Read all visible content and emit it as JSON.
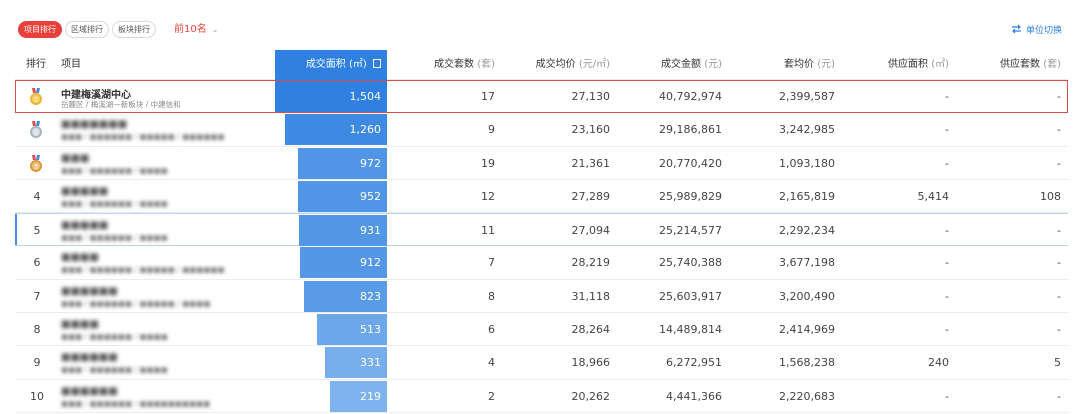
{
  "toolbar": {
    "tabs": [
      "项目排行",
      "区域排行",
      "板块排行"
    ],
    "active_tab_index": 0,
    "topn_label": "前10名",
    "unit_switch_label": "单位切换",
    "accent_color": "#e8413b",
    "link_color": "#2f7de1"
  },
  "table": {
    "headers": {
      "rank": "排行",
      "project": "项目",
      "area": "成交面积",
      "area_unit": "(㎡)",
      "sets": "成交套数",
      "sets_unit": "(套)",
      "avg_price": "成交均价",
      "avg_price_unit": "(元/㎡)",
      "amount": "成交金额",
      "amount_unit": "(元)",
      "set_avg": "套均价",
      "set_avg_unit": "(元)",
      "supply_area": "供应面积",
      "supply_area_unit": "(㎡)",
      "supply_sets": "供应套数",
      "supply_sets_unit": "(套)"
    },
    "bar_color": "#2f80e0",
    "bar_max_value": 1504,
    "rows": [
      {
        "rank": "1",
        "medal": "gold",
        "name": "中建梅溪湖中心",
        "sub": "岳麓区 / 梅溪湖—新板块 / 中建信和",
        "area": 1504,
        "area_text": "1,504",
        "sets": "17",
        "avg_price": "27,130",
        "amount": "40,792,974",
        "set_avg": "2,399,587",
        "supply_area": "-",
        "supply_sets": "-",
        "highlight": true,
        "blur": false
      },
      {
        "rank": "2",
        "medal": "silver",
        "name": "■■■■■■■",
        "sub": "■■■ / ■■■■■■ / ■■■■■ / ■■■■■■",
        "area": 1260,
        "area_text": "1,260",
        "sets": "9",
        "avg_price": "23,160",
        "amount": "29,186,861",
        "set_avg": "3,242,985",
        "supply_area": "-",
        "supply_sets": "-",
        "blur": true
      },
      {
        "rank": "3",
        "medal": "bronze",
        "name": "■■■",
        "sub": "■■■ / ■■■■■■ / ■■■■",
        "area": 972,
        "area_text": "972",
        "sets": "19",
        "avg_price": "21,361",
        "amount": "20,770,420",
        "set_avg": "1,093,180",
        "supply_area": "-",
        "supply_sets": "-",
        "blur": true
      },
      {
        "rank": "4",
        "medal": "",
        "name": "■■■■■",
        "sub": "■■■ / ■■■■■■ / ■■■■",
        "area": 952,
        "area_text": "952",
        "sets": "12",
        "avg_price": "27,289",
        "amount": "25,989,829",
        "set_avg": "2,165,819",
        "supply_area": "5,414",
        "supply_sets": "108",
        "blur": true
      },
      {
        "rank": "5",
        "medal": "",
        "name": "■■■■■",
        "sub": "■■■ / ■■■■■■ / ■■■■",
        "area": 931,
        "area_text": "931",
        "sets": "11",
        "avg_price": "27,094",
        "amount": "25,214,577",
        "set_avg": "2,292,234",
        "supply_area": "-",
        "supply_sets": "-",
        "hover": true,
        "blur": true
      },
      {
        "rank": "6",
        "medal": "",
        "name": "■■■■",
        "sub": "■■■ / ■■■■■■ / ■■■■■ / ■■■■■■",
        "area": 912,
        "area_text": "912",
        "sets": "7",
        "avg_price": "28,219",
        "amount": "25,740,388",
        "set_avg": "3,677,198",
        "supply_area": "-",
        "supply_sets": "-",
        "blur": true
      },
      {
        "rank": "7",
        "medal": "",
        "name": "■■■■■■",
        "sub": "■■■ / ■■■■■■ / ■■■■■ / ■■■■",
        "area": 823,
        "area_text": "823",
        "sets": "8",
        "avg_price": "31,118",
        "amount": "25,603,917",
        "set_avg": "3,200,490",
        "supply_area": "-",
        "supply_sets": "-",
        "blur": true
      },
      {
        "rank": "8",
        "medal": "",
        "name": "■■■■",
        "sub": "■■■ / ■■■■■■ / ■■■■",
        "area": 513,
        "area_text": "513",
        "sets": "6",
        "avg_price": "28,264",
        "amount": "14,489,814",
        "set_avg": "2,414,969",
        "supply_area": "-",
        "supply_sets": "-",
        "blur": true
      },
      {
        "rank": "9",
        "medal": "",
        "name": "■■■■■■",
        "sub": "■■■ / ■■■■■■ / ■■■■",
        "area": 331,
        "area_text": "331",
        "sets": "4",
        "avg_price": "18,966",
        "amount": "6,272,951",
        "set_avg": "1,568,238",
        "supply_area": "240",
        "supply_sets": "5",
        "blur": true
      },
      {
        "rank": "10",
        "medal": "",
        "name": "■■■■■■",
        "sub": "■■■ / ■■■■■■ / ■■■■■■■■■■",
        "area": 219,
        "area_text": "219",
        "sets": "2",
        "avg_price": "20,262",
        "amount": "4,441,366",
        "set_avg": "2,220,683",
        "supply_area": "-",
        "supply_sets": "-",
        "blur": true
      }
    ]
  }
}
